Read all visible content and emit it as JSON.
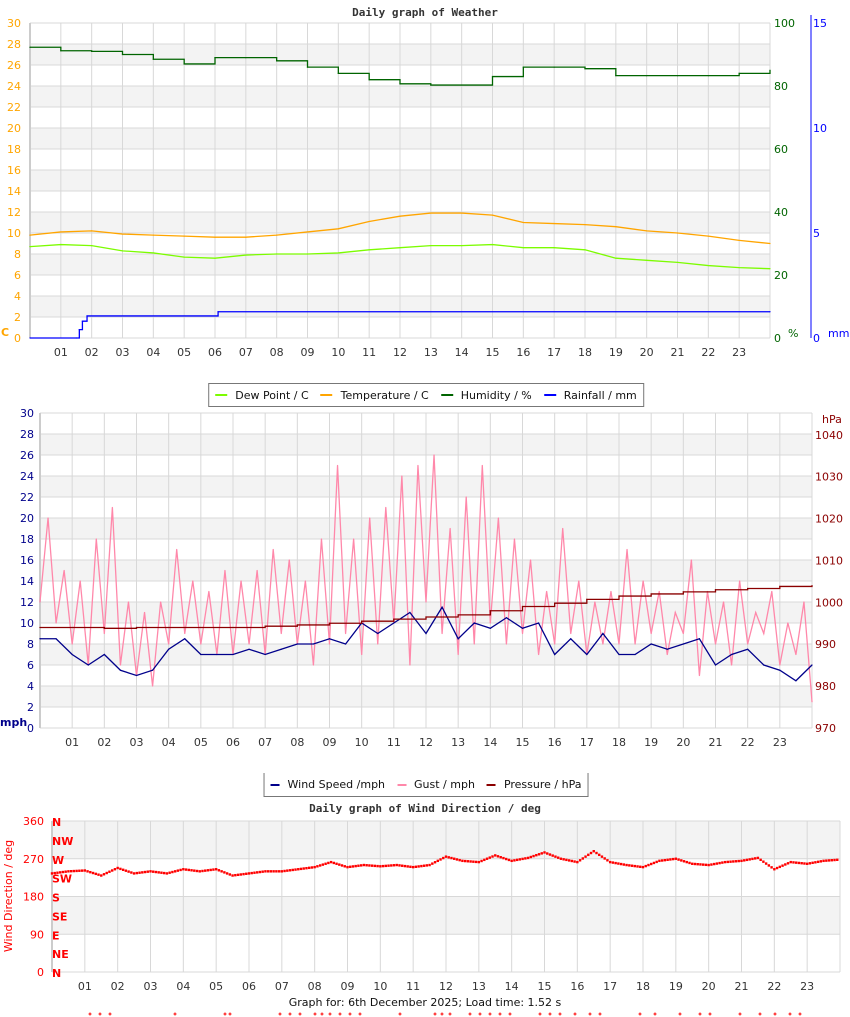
{
  "chart_data": [
    {
      "type": "line",
      "title": "Daily graph of Weather",
      "x_ticks": [
        "01",
        "02",
        "03",
        "04",
        "05",
        "06",
        "07",
        "08",
        "09",
        "10",
        "11",
        "12",
        "13",
        "14",
        "15",
        "16",
        "17",
        "18",
        "19",
        "20",
        "21",
        "22",
        "23"
      ],
      "xlim": [
        0,
        24
      ],
      "left_axis": {
        "label": "C",
        "ylim": [
          0,
          30
        ],
        "ticks": [
          "0",
          "2",
          "4",
          "6",
          "8",
          "10",
          "12",
          "14",
          "16",
          "18",
          "20",
          "22",
          "24",
          "26",
          "28",
          "30"
        ],
        "color": "#ffa500"
      },
      "right_axis_1": {
        "label": "%",
        "ylim": [
          0,
          100
        ],
        "ticks": [
          "0",
          "20",
          "40",
          "60",
          "80",
          "100"
        ],
        "color": "#006400"
      },
      "right_axis_2": {
        "label": "mm",
        "ylim": [
          0,
          15
        ],
        "ticks": [
          "0",
          "5",
          "10",
          "15"
        ],
        "color": "#0000ff"
      },
      "grid": true,
      "legend": "bottom-center",
      "series": [
        {
          "name": "Dew Point / C",
          "color": "#7cfc00",
          "axis": "left",
          "x": [
            0,
            1,
            2,
            3,
            4,
            5,
            6,
            7,
            8,
            9,
            10,
            11,
            12,
            13,
            14,
            15,
            16,
            17,
            18,
            19,
            20,
            21,
            22,
            23,
            24
          ],
          "values": [
            8.7,
            8.9,
            8.8,
            8.3,
            8.1,
            7.7,
            7.6,
            7.9,
            8.0,
            8.0,
            8.1,
            8.4,
            8.6,
            8.8,
            8.8,
            8.9,
            8.6,
            8.6,
            8.4,
            7.6,
            7.4,
            7.2,
            6.9,
            6.7,
            6.6
          ]
        },
        {
          "name": "Temperature / C",
          "color": "#ffa500",
          "axis": "left",
          "x": [
            0,
            1,
            2,
            3,
            4,
            5,
            6,
            7,
            8,
            9,
            10,
            11,
            12,
            13,
            14,
            15,
            16,
            17,
            18,
            19,
            20,
            21,
            22,
            23,
            24
          ],
          "values": [
            9.8,
            10.1,
            10.2,
            9.9,
            9.8,
            9.7,
            9.6,
            9.6,
            9.8,
            10.1,
            10.4,
            11.1,
            11.6,
            11.9,
            11.9,
            11.7,
            11.0,
            10.9,
            10.8,
            10.6,
            10.2,
            10.0,
            9.7,
            9.3,
            9.0
          ]
        },
        {
          "name": "Humidity / %",
          "color": "#006400",
          "axis": "right_1",
          "x": [
            0,
            1,
            2,
            3,
            4,
            5,
            6,
            7,
            8,
            9,
            10,
            11,
            12,
            13,
            14,
            15,
            16,
            17,
            18,
            19,
            20,
            21,
            22,
            23,
            24
          ],
          "values": [
            92.3,
            91.2,
            91,
            90,
            88.5,
            87,
            89,
            89,
            88,
            86,
            84,
            82,
            80.7,
            80.3,
            80.3,
            83,
            86,
            86,
            85.5,
            83.3,
            83.3,
            83.3,
            83.3,
            84,
            85
          ]
        },
        {
          "name": "Rainfall / mm",
          "color": "#0000ff",
          "axis": "right_2",
          "step": true,
          "x": [
            0,
            1.5,
            1.6,
            1.7,
            1.85,
            6.1,
            24
          ],
          "values": [
            0,
            0,
            0.4,
            0.8,
            1.05,
            1.25,
            1.25
          ]
        }
      ]
    },
    {
      "type": "line",
      "title": "",
      "x_ticks": [
        "01",
        "02",
        "03",
        "04",
        "05",
        "06",
        "07",
        "08",
        "09",
        "10",
        "11",
        "12",
        "13",
        "14",
        "15",
        "16",
        "17",
        "18",
        "19",
        "20",
        "21",
        "22",
        "23"
      ],
      "xlim": [
        0,
        24
      ],
      "left_axis": {
        "label": "mph",
        "ylim": [
          0,
          30
        ],
        "ticks": [
          "0",
          "2",
          "4",
          "6",
          "8",
          "10",
          "12",
          "14",
          "16",
          "18",
          "20",
          "22",
          "24",
          "26",
          "28",
          "30"
        ],
        "color": "#00008b"
      },
      "right_axis": {
        "label": "hPa",
        "ylim": [
          970,
          1045.2
        ],
        "ticks": [
          "970",
          "980",
          "990",
          "1000",
          "1010",
          "1020",
          "1030",
          "1040"
        ],
        "color": "#8b0000"
      },
      "grid": true,
      "legend": "bottom-center",
      "series": [
        {
          "name": "Wind Speed /mph",
          "color": "#00008b",
          "axis": "left",
          "x_step": 0.5,
          "values": [
            8.5,
            8.5,
            7,
            6,
            7,
            5.5,
            5,
            5.5,
            7.5,
            8.5,
            7,
            7,
            7,
            7.5,
            7,
            7.5,
            8,
            8,
            8.5,
            8,
            10,
            9,
            10,
            11,
            9,
            11.5,
            8.5,
            10,
            9.5,
            10.5,
            9.5,
            10,
            7,
            8.5,
            7,
            9,
            7,
            7,
            8,
            7.5,
            8,
            8.5,
            6,
            7,
            7.5,
            6,
            5.5,
            4.5,
            6
          ]
        },
        {
          "name": "Gust / mph",
          "color": "#ff88aa",
          "axis": "left",
          "x_step": 0.25,
          "values": [
            12,
            20,
            10,
            15,
            8,
            14,
            6,
            18,
            9,
            21,
            6,
            12,
            5,
            11,
            4,
            12,
            8,
            17,
            9,
            14,
            8,
            13,
            7,
            15,
            7,
            14,
            8,
            15,
            7,
            17,
            9,
            16,
            8,
            14,
            6,
            18,
            8,
            25,
            9,
            18,
            7,
            20,
            8,
            21,
            10,
            24,
            6,
            25,
            12,
            26,
            9,
            19,
            7,
            22,
            8,
            25,
            10,
            20,
            8,
            18,
            9,
            16,
            7,
            13,
            8,
            19,
            9,
            14,
            7,
            12,
            8,
            13,
            8,
            17,
            8,
            14,
            9,
            13,
            7,
            11,
            9,
            16,
            5,
            13,
            8,
            12,
            6,
            14,
            8,
            11,
            9,
            13,
            6,
            10,
            7,
            12,
            2.5
          ]
        },
        {
          "name": "Pressure / hPa",
          "color": "#8b0000",
          "axis": "right",
          "x_step": 1,
          "values": [
            994,
            994,
            993.8,
            994,
            994,
            994,
            994,
            994.3,
            994.6,
            995,
            995.5,
            996,
            996.5,
            997,
            998,
            999,
            999.8,
            1000.7,
            1001.5,
            1002,
            1002.5,
            1003,
            1003.3,
            1003.8,
            1004
          ]
        }
      ]
    },
    {
      "type": "scatter",
      "title": "Daily graph of Wind Direction / deg",
      "ylabel": "Wind Direction / deg",
      "x_ticks": [
        "01",
        "02",
        "03",
        "04",
        "05",
        "06",
        "07",
        "08",
        "09",
        "10",
        "11",
        "12",
        "13",
        "14",
        "15",
        "16",
        "17",
        "18",
        "19",
        "20",
        "21",
        "22",
        "23"
      ],
      "xlim": [
        0,
        24
      ],
      "ylim": [
        0,
        360
      ],
      "y_ticks": [
        "0",
        "90",
        "180",
        "270",
        "360"
      ],
      "compass_ticks": [
        "N",
        "NE",
        "E",
        "SE",
        "S",
        "SW",
        "W",
        "NW",
        "N"
      ],
      "grid": true,
      "color": "#ff0000",
      "series": [
        {
          "name": "",
          "x_step": 0.5,
          "values": [
            235,
            240,
            242,
            230,
            248,
            235,
            240,
            235,
            245,
            240,
            245,
            230,
            235,
            240,
            240,
            245,
            250,
            262,
            250,
            255,
            252,
            255,
            250,
            255,
            275,
            265,
            262,
            278,
            265,
            272,
            285,
            270,
            262,
            288,
            262,
            255,
            250,
            265,
            270,
            258,
            255,
            262,
            265,
            272,
            245,
            262,
            258,
            265,
            268
          ]
        }
      ]
    }
  ],
  "footer": {
    "text": "Graph for: 6th December 2025; Load time: 1.52 s"
  }
}
